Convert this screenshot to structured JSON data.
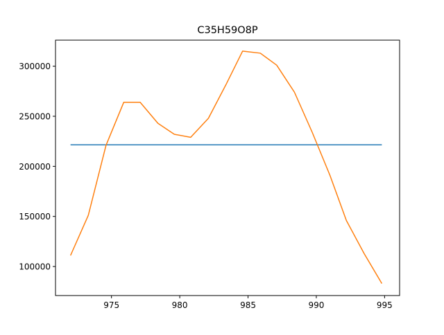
{
  "chart_data": {
    "type": "line",
    "title": "C35H59O8P",
    "xlabel": "",
    "ylabel": "",
    "xlim": [
      970.9,
      996.1
    ],
    "ylim": [
      71000,
      326000
    ],
    "xticks": [
      975,
      980,
      985,
      990,
      995
    ],
    "yticks": [
      100000,
      150000,
      200000,
      250000,
      300000
    ],
    "grid": false,
    "series": [
      {
        "color": "#1f77b4",
        "x": [
          972.0,
          994.8
        ],
        "y": [
          221500,
          221500
        ]
      },
      {
        "color": "#ff7f0e",
        "x": [
          972.0,
          973.3,
          974.6,
          975.9,
          977.1,
          978.4,
          979.6,
          980.8,
          982.1,
          983.4,
          984.6,
          985.9,
          987.1,
          988.4,
          989.7,
          991.0,
          992.2,
          993.5,
          994.8
        ],
        "y": [
          111000,
          151000,
          221000,
          264000,
          264000,
          243000,
          232000,
          229000,
          248000,
          282000,
          315000,
          313000,
          301000,
          274000,
          234000,
          191000,
          146000,
          113000,
          83000
        ]
      }
    ]
  }
}
